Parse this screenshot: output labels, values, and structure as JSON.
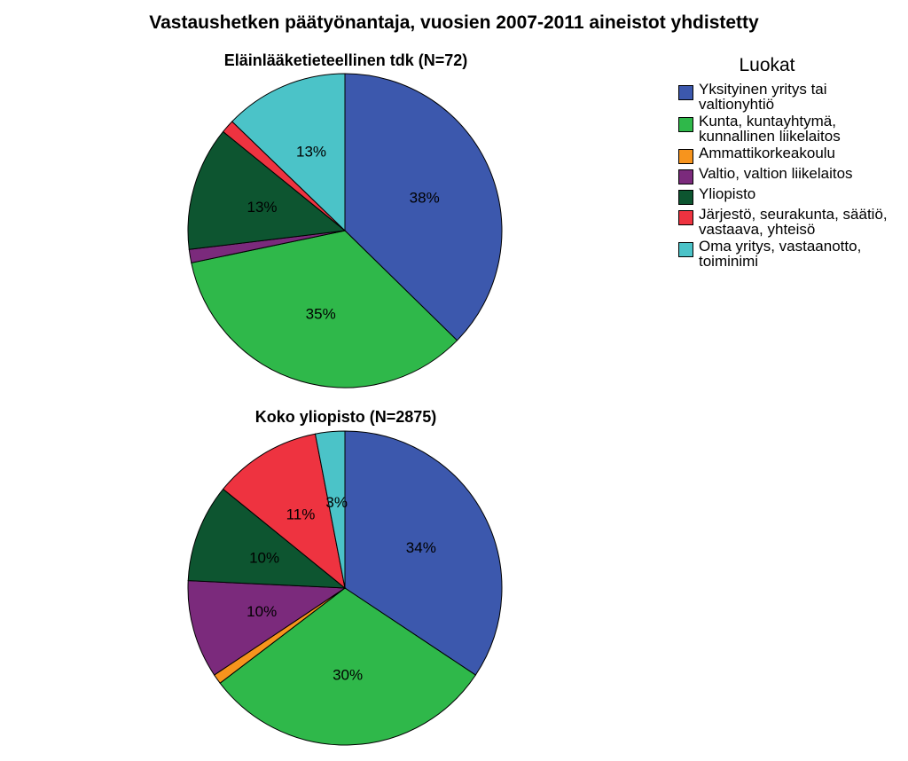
{
  "chart_data": {
    "type": "pie",
    "title": "Vastaushetken päätyönantaja, vuosien 2007-2011 aineistot yhdistetty",
    "legend": {
      "title": "Luokat",
      "placement": "right",
      "entries": [
        {
          "label": "Yksityinen yritys tai valtionyhtiö",
          "color": "#3c58ad"
        },
        {
          "label": "Kunta, kuntayhtymä, kunnallinen liikelaitos",
          "color": "#2fb84a"
        },
        {
          "label": "Ammattikorkeakoulu",
          "color": "#f7941d"
        },
        {
          "label": "Valtio, valtion liikelaitos",
          "color": "#7b2a7c"
        },
        {
          "label": "Yliopisto",
          "color": "#0d5530"
        },
        {
          "label": "Järjestö, seurakunta, säätiö, vastaava, yhteisö",
          "color": "#ee3340"
        },
        {
          "label": "Oma yritys, vastaanotto, toiminimi",
          "color": "#4bc3c8"
        }
      ]
    },
    "pies": [
      {
        "title": "Eläinlääketieteellinen tdk (N=72)",
        "values": [
          38,
          35,
          0,
          1.4,
          13,
          1.4,
          13
        ],
        "labels": [
          "38%",
          "35%",
          "",
          "",
          "13%",
          "",
          "13%"
        ]
      },
      {
        "title": "Koko yliopisto (N=2875)",
        "values": [
          34,
          30,
          1,
          10,
          10,
          11,
          3
        ],
        "labels": [
          "34%",
          "30%",
          "",
          "10%",
          "10%",
          "11%",
          "3%"
        ]
      }
    ]
  }
}
